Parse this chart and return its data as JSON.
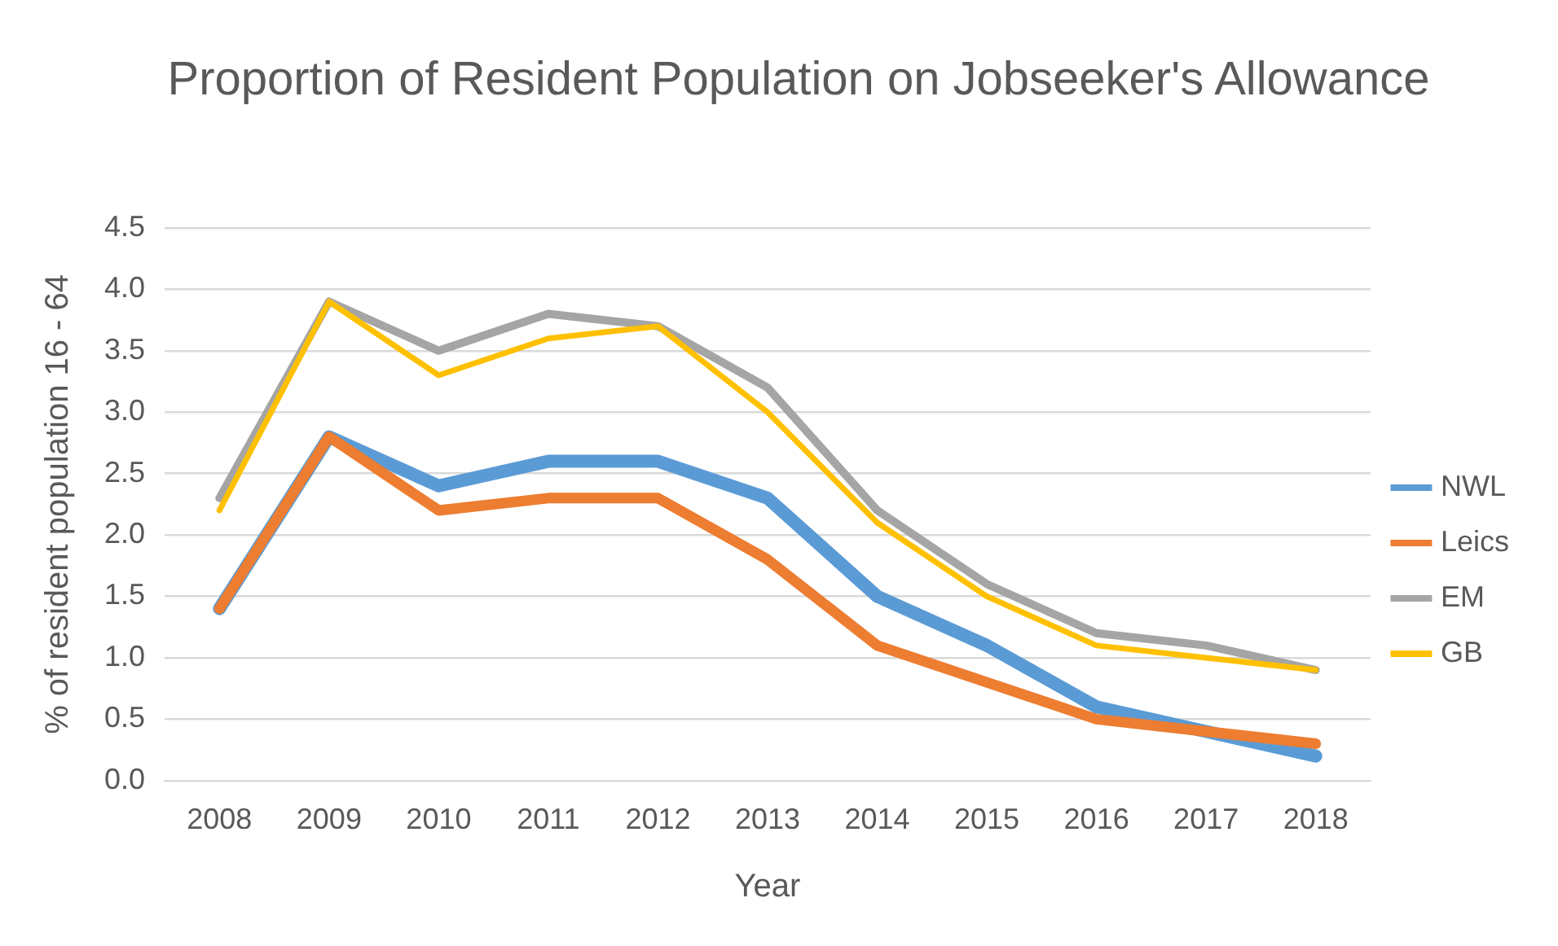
{
  "chart_data": {
    "type": "line",
    "title": "Proportion of Resident Population on Jobseeker's Allowance",
    "xlabel": "Year",
    "ylabel": "% of resident population 16 - 64",
    "categories": [
      "2008",
      "2009",
      "2010",
      "2011",
      "2012",
      "2013",
      "2014",
      "2015",
      "2016",
      "2017",
      "2018"
    ],
    "series": [
      {
        "name": "NWL",
        "color": "#5b9bd5",
        "values": [
          1.4,
          2.8,
          2.4,
          2.6,
          2.6,
          2.3,
          1.5,
          1.1,
          0.6,
          0.4,
          0.2
        ]
      },
      {
        "name": "Leics",
        "color": "#ed7d31",
        "values": [
          1.4,
          2.8,
          2.2,
          2.3,
          2.3,
          1.8,
          1.1,
          0.8,
          0.5,
          0.4,
          0.3
        ]
      },
      {
        "name": "EM",
        "color": "#a5a5a5",
        "values": [
          2.3,
          3.9,
          3.5,
          3.8,
          3.7,
          3.2,
          2.2,
          1.6,
          1.2,
          1.1,
          0.9
        ]
      },
      {
        "name": "GB",
        "color": "#ffc000",
        "values": [
          2.2,
          3.9,
          3.3,
          3.6,
          3.7,
          3.0,
          2.1,
          1.5,
          1.1,
          1.0,
          0.9
        ]
      }
    ],
    "ylim": [
      0,
      4.5
    ],
    "yticks": [
      {
        "value": 0,
        "label": "0.0"
      },
      {
        "value": 0.5,
        "label": "0.5"
      },
      {
        "value": 1,
        "label": "1.0"
      },
      {
        "value": 1.5,
        "label": "1.5"
      },
      {
        "value": 2,
        "label": "2.0"
      },
      {
        "value": 2.5,
        "label": "2.5"
      },
      {
        "value": 3,
        "label": "3.0"
      },
      {
        "value": 3.5,
        "label": "3.5"
      },
      {
        "value": 4,
        "label": "4.0"
      },
      {
        "value": 4.5,
        "label": "4.5"
      }
    ],
    "grid": "y",
    "legend": "right",
    "marker": "none",
    "line_style": "solid"
  }
}
